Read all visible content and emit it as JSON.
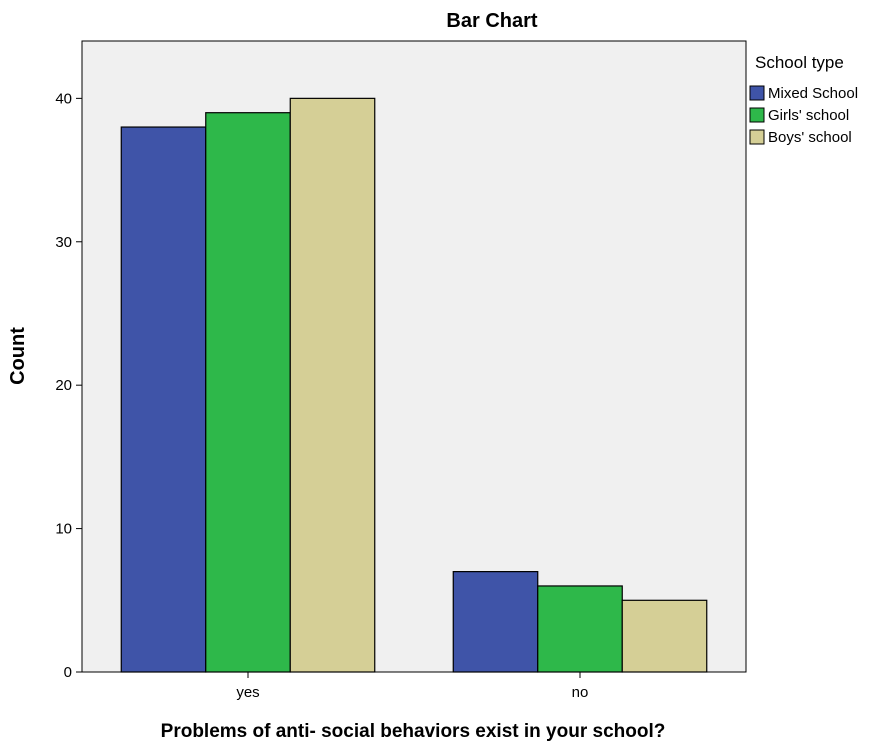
{
  "chart_data": {
    "type": "bar",
    "title": "Bar Chart",
    "xlabel": "Problems of anti- social behaviors exist in your school?",
    "ylabel": "Count",
    "categories": [
      "yes",
      "no"
    ],
    "series": [
      {
        "name": "Mixed School",
        "values": [
          38,
          7
        ],
        "color": "#3f54a8"
      },
      {
        "name": "Girls' school",
        "values": [
          39,
          6
        ],
        "color": "#2eb84a"
      },
      {
        "name": "Boys' school",
        "values": [
          40,
          5
        ],
        "color": "#d5cf96"
      }
    ],
    "ylim": [
      0,
      44
    ],
    "yticks": [
      0,
      10,
      20,
      30,
      40
    ],
    "legend_title": "School type",
    "legend_position": "right",
    "grid": false,
    "plot_background": "#f0f0f0",
    "bar_outline": "#000000"
  }
}
